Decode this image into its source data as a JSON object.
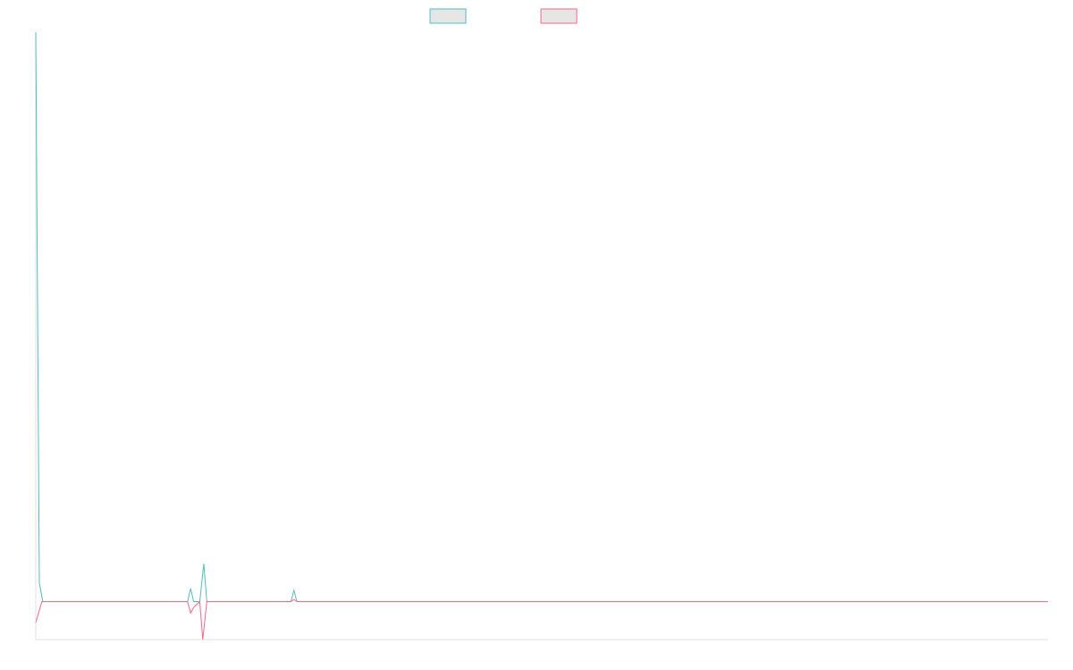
{
  "chart_data": {
    "type": "line",
    "title": "",
    "xlabel": "",
    "ylabel": "",
    "grid": false,
    "legend_position": "top-center",
    "x_range": [
      0,
      100
    ],
    "ylim": [
      -10,
      150
    ],
    "series": [
      {
        "color": "#4bc0c0",
        "points": [
          [
            0,
            150
          ],
          [
            0.35,
            5
          ],
          [
            0.7,
            0
          ],
          [
            15,
            0
          ],
          [
            15.3,
            3.5
          ],
          [
            15.6,
            0
          ],
          [
            16.2,
            0
          ],
          [
            16.6,
            10
          ],
          [
            16.9,
            0
          ],
          [
            25.2,
            0
          ],
          [
            25.5,
            3
          ],
          [
            25.8,
            0
          ],
          [
            100,
            0
          ]
        ]
      },
      {
        "color": "#ff6384",
        "points": [
          [
            0,
            -5.5
          ],
          [
            0.6,
            0
          ],
          [
            15,
            0
          ],
          [
            15.3,
            -3
          ],
          [
            15.6,
            -1.5
          ],
          [
            16.2,
            0
          ],
          [
            16.5,
            -10
          ],
          [
            16.9,
            0
          ],
          [
            25.2,
            0
          ],
          [
            25.5,
            0.6
          ],
          [
            25.8,
            0
          ],
          [
            100,
            0
          ]
        ]
      }
    ]
  }
}
